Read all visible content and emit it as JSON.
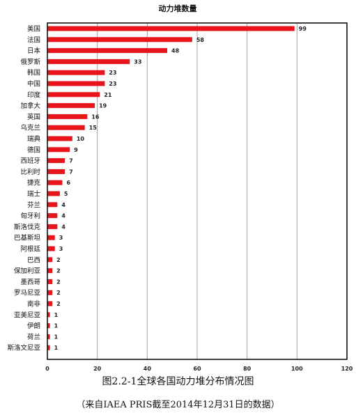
{
  "chart_data": {
    "type": "bar",
    "orientation": "horizontal",
    "title": "动力堆数量",
    "categories": [
      "美国",
      "法国",
      "日本",
      "俄罗斯",
      "韩国",
      "中国",
      "印度",
      "加拿大",
      "英国",
      "乌克兰",
      "瑞典",
      "德国",
      "西班牙",
      "比利时",
      "捷克",
      "瑞士",
      "芬兰",
      "匈牙利",
      "斯洛伐克",
      "巴基斯坦",
      "阿根廷",
      "巴西",
      "保加利亚",
      "墨西哥",
      "罗马尼亚",
      "南非",
      "亚美尼亚",
      "伊朗",
      "荷兰",
      "斯洛文尼亚"
    ],
    "values": [
      99,
      58,
      48,
      33,
      23,
      23,
      21,
      19,
      16,
      15,
      10,
      9,
      7,
      7,
      6,
      5,
      4,
      4,
      4,
      3,
      3,
      2,
      2,
      2,
      2,
      2,
      1,
      1,
      1,
      1
    ],
    "xlim": [
      0,
      120
    ],
    "xticks": [
      0,
      20,
      40,
      60,
      80,
      100,
      120
    ],
    "bar_color": "#e8141b",
    "grid": true,
    "data_labels": true
  },
  "caption": {
    "main": "图2.2-1全球各国动力堆分布情况图",
    "source": "（来自IAEA PRIS截至2014年12月31日的数据）"
  }
}
